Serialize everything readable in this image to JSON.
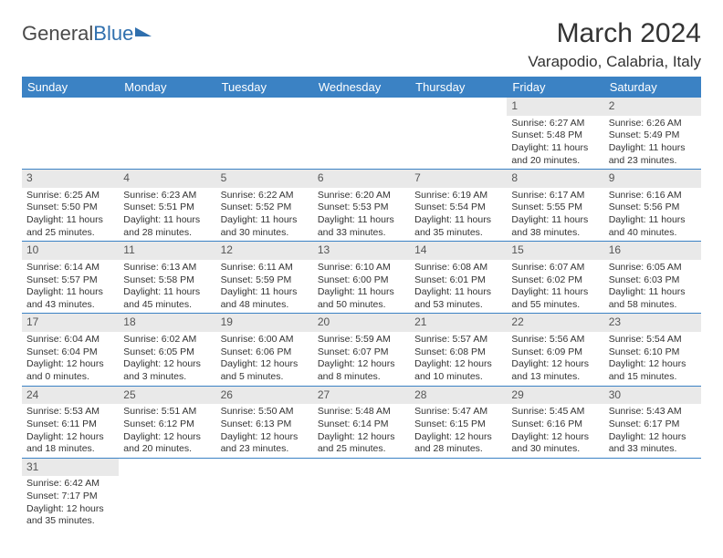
{
  "logo": {
    "text1": "General",
    "text2": "Blue"
  },
  "title": "March 2024",
  "location": "Varapodio, Calabria, Italy",
  "dayHeaders": [
    "Sunday",
    "Monday",
    "Tuesday",
    "Wednesday",
    "Thursday",
    "Friday",
    "Saturday"
  ],
  "colors": {
    "headerBg": "#3b82c4",
    "headerText": "#ffffff",
    "dayNumBg": "#e9e9e9",
    "rowBorder": "#3b82c4",
    "logoBlue": "#2f6fae"
  },
  "weeks": [
    [
      null,
      null,
      null,
      null,
      null,
      {
        "n": "1",
        "sr": "6:27 AM",
        "ss": "5:48 PM",
        "dl": "11 hours and 20 minutes."
      },
      {
        "n": "2",
        "sr": "6:26 AM",
        "ss": "5:49 PM",
        "dl": "11 hours and 23 minutes."
      }
    ],
    [
      {
        "n": "3",
        "sr": "6:25 AM",
        "ss": "5:50 PM",
        "dl": "11 hours and 25 minutes."
      },
      {
        "n": "4",
        "sr": "6:23 AM",
        "ss": "5:51 PM",
        "dl": "11 hours and 28 minutes."
      },
      {
        "n": "5",
        "sr": "6:22 AM",
        "ss": "5:52 PM",
        "dl": "11 hours and 30 minutes."
      },
      {
        "n": "6",
        "sr": "6:20 AM",
        "ss": "5:53 PM",
        "dl": "11 hours and 33 minutes."
      },
      {
        "n": "7",
        "sr": "6:19 AM",
        "ss": "5:54 PM",
        "dl": "11 hours and 35 minutes."
      },
      {
        "n": "8",
        "sr": "6:17 AM",
        "ss": "5:55 PM",
        "dl": "11 hours and 38 minutes."
      },
      {
        "n": "9",
        "sr": "6:16 AM",
        "ss": "5:56 PM",
        "dl": "11 hours and 40 minutes."
      }
    ],
    [
      {
        "n": "10",
        "sr": "6:14 AM",
        "ss": "5:57 PM",
        "dl": "11 hours and 43 minutes."
      },
      {
        "n": "11",
        "sr": "6:13 AM",
        "ss": "5:58 PM",
        "dl": "11 hours and 45 minutes."
      },
      {
        "n": "12",
        "sr": "6:11 AM",
        "ss": "5:59 PM",
        "dl": "11 hours and 48 minutes."
      },
      {
        "n": "13",
        "sr": "6:10 AM",
        "ss": "6:00 PM",
        "dl": "11 hours and 50 minutes."
      },
      {
        "n": "14",
        "sr": "6:08 AM",
        "ss": "6:01 PM",
        "dl": "11 hours and 53 minutes."
      },
      {
        "n": "15",
        "sr": "6:07 AM",
        "ss": "6:02 PM",
        "dl": "11 hours and 55 minutes."
      },
      {
        "n": "16",
        "sr": "6:05 AM",
        "ss": "6:03 PM",
        "dl": "11 hours and 58 minutes."
      }
    ],
    [
      {
        "n": "17",
        "sr": "6:04 AM",
        "ss": "6:04 PM",
        "dl": "12 hours and 0 minutes."
      },
      {
        "n": "18",
        "sr": "6:02 AM",
        "ss": "6:05 PM",
        "dl": "12 hours and 3 minutes."
      },
      {
        "n": "19",
        "sr": "6:00 AM",
        "ss": "6:06 PM",
        "dl": "12 hours and 5 minutes."
      },
      {
        "n": "20",
        "sr": "5:59 AM",
        "ss": "6:07 PM",
        "dl": "12 hours and 8 minutes."
      },
      {
        "n": "21",
        "sr": "5:57 AM",
        "ss": "6:08 PM",
        "dl": "12 hours and 10 minutes."
      },
      {
        "n": "22",
        "sr": "5:56 AM",
        "ss": "6:09 PM",
        "dl": "12 hours and 13 minutes."
      },
      {
        "n": "23",
        "sr": "5:54 AM",
        "ss": "6:10 PM",
        "dl": "12 hours and 15 minutes."
      }
    ],
    [
      {
        "n": "24",
        "sr": "5:53 AM",
        "ss": "6:11 PM",
        "dl": "12 hours and 18 minutes."
      },
      {
        "n": "25",
        "sr": "5:51 AM",
        "ss": "6:12 PM",
        "dl": "12 hours and 20 minutes."
      },
      {
        "n": "26",
        "sr": "5:50 AM",
        "ss": "6:13 PM",
        "dl": "12 hours and 23 minutes."
      },
      {
        "n": "27",
        "sr": "5:48 AM",
        "ss": "6:14 PM",
        "dl": "12 hours and 25 minutes."
      },
      {
        "n": "28",
        "sr": "5:47 AM",
        "ss": "6:15 PM",
        "dl": "12 hours and 28 minutes."
      },
      {
        "n": "29",
        "sr": "5:45 AM",
        "ss": "6:16 PM",
        "dl": "12 hours and 30 minutes."
      },
      {
        "n": "30",
        "sr": "5:43 AM",
        "ss": "6:17 PM",
        "dl": "12 hours and 33 minutes."
      }
    ],
    [
      {
        "n": "31",
        "sr": "6:42 AM",
        "ss": "7:17 PM",
        "dl": "12 hours and 35 minutes."
      },
      null,
      null,
      null,
      null,
      null,
      null
    ]
  ],
  "labels": {
    "sunrisePrefix": "Sunrise: ",
    "sunsetPrefix": "Sunset: ",
    "daylightPrefix": "Daylight: "
  }
}
